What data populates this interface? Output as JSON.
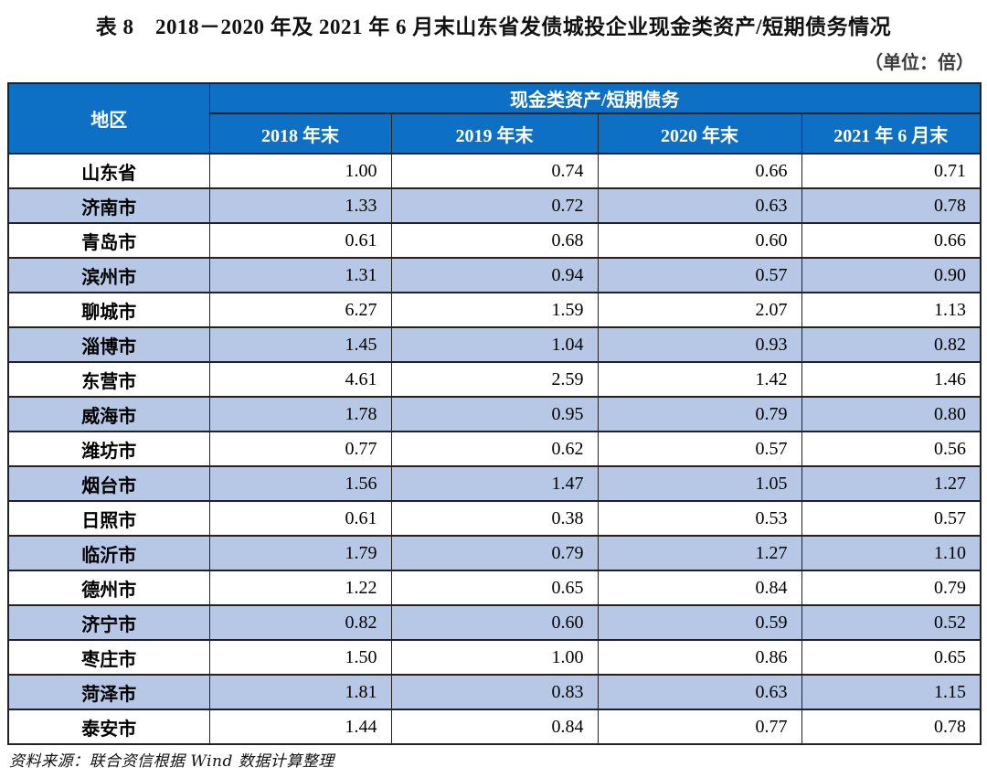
{
  "page": {
    "title": "表 8　2018－2020 年及 2021 年 6 月末山东省发债城投企业现金类资产/短期债务情况",
    "unit_note": "（单位：倍）",
    "source_note": "资料来源：联合资信根据 Wind 数据计算整理"
  },
  "colors": {
    "header_bg": "#0E70C4",
    "stripe_bg": "#B6C8E6",
    "border": "#222222",
    "header_text": "#FFFFFF"
  },
  "table": {
    "region_header": "地区",
    "group_header": "现金类资产/短期债务",
    "column_headers": [
      "2018 年末",
      "2019 年末",
      "2020 年末",
      "2021 年 6 月末"
    ],
    "rows": [
      {
        "region": "山东省",
        "values": [
          "1.00",
          "0.74",
          "0.66",
          "0.71"
        ]
      },
      {
        "region": "济南市",
        "values": [
          "1.33",
          "0.72",
          "0.63",
          "0.78"
        ]
      },
      {
        "region": "青岛市",
        "values": [
          "0.61",
          "0.68",
          "0.60",
          "0.66"
        ]
      },
      {
        "region": "滨州市",
        "values": [
          "1.31",
          "0.94",
          "0.57",
          "0.90"
        ]
      },
      {
        "region": "聊城市",
        "values": [
          "6.27",
          "1.59",
          "2.07",
          "1.13"
        ]
      },
      {
        "region": "淄博市",
        "values": [
          "1.45",
          "1.04",
          "0.93",
          "0.82"
        ]
      },
      {
        "region": "东营市",
        "values": [
          "4.61",
          "2.59",
          "1.42",
          "1.46"
        ]
      },
      {
        "region": "威海市",
        "values": [
          "1.78",
          "0.95",
          "0.79",
          "0.80"
        ]
      },
      {
        "region": "潍坊市",
        "values": [
          "0.77",
          "0.62",
          "0.57",
          "0.56"
        ]
      },
      {
        "region": "烟台市",
        "values": [
          "1.56",
          "1.47",
          "1.05",
          "1.27"
        ]
      },
      {
        "region": "日照市",
        "values": [
          "0.61",
          "0.38",
          "0.53",
          "0.57"
        ]
      },
      {
        "region": "临沂市",
        "values": [
          "1.79",
          "0.79",
          "1.27",
          "1.10"
        ]
      },
      {
        "region": "德州市",
        "values": [
          "1.22",
          "0.65",
          "0.84",
          "0.79"
        ]
      },
      {
        "region": "济宁市",
        "values": [
          "0.82",
          "0.60",
          "0.59",
          "0.52"
        ]
      },
      {
        "region": "枣庄市",
        "values": [
          "1.50",
          "1.00",
          "0.86",
          "0.65"
        ]
      },
      {
        "region": "菏泽市",
        "values": [
          "1.81",
          "0.83",
          "0.63",
          "1.15"
        ]
      },
      {
        "region": "泰安市",
        "values": [
          "1.44",
          "0.84",
          "0.77",
          "0.78"
        ]
      }
    ]
  },
  "chart_data": {
    "type": "table",
    "title": "表 8　2018－2020 年及 2021 年 6 月末山东省发债城投企业现金类资产/短期债务情况",
    "unit": "倍",
    "categories": [
      "2018 年末",
      "2019 年末",
      "2020 年末",
      "2021 年 6 月末"
    ],
    "series": [
      {
        "name": "山东省",
        "values": [
          1.0,
          0.74,
          0.66,
          0.71
        ]
      },
      {
        "name": "济南市",
        "values": [
          1.33,
          0.72,
          0.63,
          0.78
        ]
      },
      {
        "name": "青岛市",
        "values": [
          0.61,
          0.68,
          0.6,
          0.66
        ]
      },
      {
        "name": "滨州市",
        "values": [
          1.31,
          0.94,
          0.57,
          0.9
        ]
      },
      {
        "name": "聊城市",
        "values": [
          6.27,
          1.59,
          2.07,
          1.13
        ]
      },
      {
        "name": "淄博市",
        "values": [
          1.45,
          1.04,
          0.93,
          0.82
        ]
      },
      {
        "name": "东营市",
        "values": [
          4.61,
          2.59,
          1.42,
          1.46
        ]
      },
      {
        "name": "威海市",
        "values": [
          1.78,
          0.95,
          0.79,
          0.8
        ]
      },
      {
        "name": "潍坊市",
        "values": [
          0.77,
          0.62,
          0.57,
          0.56
        ]
      },
      {
        "name": "烟台市",
        "values": [
          1.56,
          1.47,
          1.05,
          1.27
        ]
      },
      {
        "name": "日照市",
        "values": [
          0.61,
          0.38,
          0.53,
          0.57
        ]
      },
      {
        "name": "临沂市",
        "values": [
          1.79,
          0.79,
          1.27,
          1.1
        ]
      },
      {
        "name": "德州市",
        "values": [
          1.22,
          0.65,
          0.84,
          0.79
        ]
      },
      {
        "name": "济宁市",
        "values": [
          0.82,
          0.6,
          0.59,
          0.52
        ]
      },
      {
        "name": "枣庄市",
        "values": [
          1.5,
          1.0,
          0.86,
          0.65
        ]
      },
      {
        "name": "菏泽市",
        "values": [
          1.81,
          0.83,
          0.63,
          1.15
        ]
      },
      {
        "name": "泰安市",
        "values": [
          1.44,
          0.84,
          0.77,
          0.78
        ]
      }
    ]
  }
}
